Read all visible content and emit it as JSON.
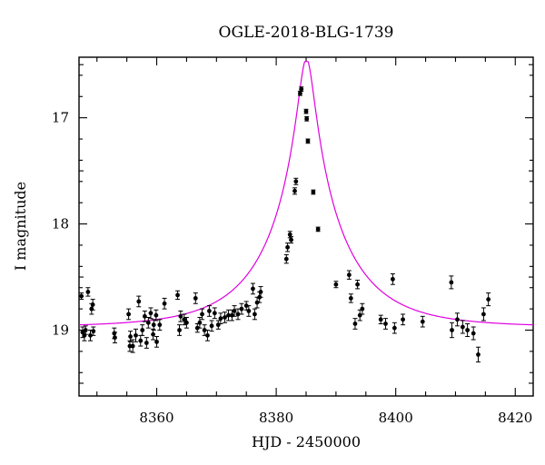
{
  "chart_data": {
    "type": "scatter",
    "title": "OGLE-2018-BLG-1739",
    "xlabel": "HJD - 2450000",
    "ylabel": "I magnitude",
    "xlim": [
      8347,
      8423
    ],
    "ylim": [
      19.62,
      16.43
    ],
    "y_inverted": true,
    "grid": false,
    "x_ticks": [
      8360,
      8380,
      8400,
      8420
    ],
    "y_ticks": [
      17,
      18,
      19
    ],
    "colors": {
      "points": "#000000",
      "model": "#e000e0"
    },
    "series": [
      {
        "kind": "points_with_errorbars",
        "points": [
          [
            8347.4,
            18.68,
            0.03
          ],
          [
            8347.6,
            19.02,
            0.05
          ],
          [
            8347.9,
            19.05,
            0.05
          ],
          [
            8348.1,
            19.0,
            0.04
          ],
          [
            8348.5,
            18.64,
            0.04
          ],
          [
            8348.9,
            19.05,
            0.05
          ],
          [
            8349.1,
            18.8,
            0.05
          ],
          [
            8349.3,
            18.76,
            0.05
          ],
          [
            8349.4,
            19.01,
            0.04
          ],
          [
            8352.9,
            19.03,
            0.05
          ],
          [
            8353.0,
            19.07,
            0.05
          ],
          [
            8355.3,
            18.85,
            0.05
          ],
          [
            8355.5,
            19.15,
            0.05
          ],
          [
            8355.6,
            19.06,
            0.05
          ],
          [
            8356.0,
            19.15,
            0.06
          ],
          [
            8356.5,
            19.05,
            0.06
          ],
          [
            8357.0,
            18.73,
            0.05
          ],
          [
            8357.3,
            19.1,
            0.05
          ],
          [
            8357.6,
            19.0,
            0.05
          ],
          [
            8358.0,
            18.87,
            0.05
          ],
          [
            8358.3,
            19.12,
            0.05
          ],
          [
            8358.6,
            18.93,
            0.05
          ],
          [
            8359.0,
            18.84,
            0.05
          ],
          [
            8359.4,
            19.04,
            0.05
          ],
          [
            8359.5,
            18.95,
            0.05
          ],
          [
            8359.9,
            18.86,
            0.05
          ],
          [
            8360.0,
            19.11,
            0.05
          ],
          [
            8360.5,
            18.95,
            0.05
          ],
          [
            8361.3,
            18.75,
            0.05
          ],
          [
            8363.5,
            18.67,
            0.04
          ],
          [
            8363.8,
            19.0,
            0.05
          ],
          [
            8364.0,
            18.87,
            0.05
          ],
          [
            8364.6,
            18.9,
            0.05
          ],
          [
            8365.0,
            18.93,
            0.05
          ],
          [
            8366.5,
            18.7,
            0.05
          ],
          [
            8366.8,
            18.98,
            0.04
          ],
          [
            8367.2,
            18.93,
            0.05
          ],
          [
            8367.6,
            18.85,
            0.05
          ],
          [
            8368.0,
            19.0,
            0.05
          ],
          [
            8368.5,
            19.05,
            0.05
          ],
          [
            8368.8,
            18.82,
            0.05
          ],
          [
            8369.2,
            18.96,
            0.05
          ],
          [
            8369.7,
            18.84,
            0.05
          ],
          [
            8370.3,
            18.95,
            0.04
          ],
          [
            8370.7,
            18.89,
            0.05
          ],
          [
            8371.4,
            18.88,
            0.05
          ],
          [
            8372.0,
            18.86,
            0.05
          ],
          [
            8372.6,
            18.86,
            0.05
          ],
          [
            8373.0,
            18.82,
            0.05
          ],
          [
            8373.6,
            18.85,
            0.05
          ],
          [
            8374.2,
            18.8,
            0.05
          ],
          [
            8375.0,
            18.77,
            0.04
          ],
          [
            8375.4,
            18.82,
            0.05
          ],
          [
            8376.1,
            18.61,
            0.05
          ],
          [
            8376.4,
            18.85,
            0.05
          ],
          [
            8376.8,
            18.74,
            0.05
          ],
          [
            8377.2,
            18.69,
            0.05
          ],
          [
            8377.4,
            18.64,
            0.05
          ],
          [
            8381.7,
            18.33,
            0.04
          ],
          [
            8381.9,
            18.22,
            0.04
          ],
          [
            8382.3,
            18.1,
            0.03
          ],
          [
            8382.5,
            18.15,
            0.03
          ],
          [
            8383.1,
            17.69,
            0.03
          ],
          [
            8383.3,
            17.6,
            0.03
          ],
          [
            8384.0,
            16.77,
            0.02
          ],
          [
            8384.2,
            16.73,
            0.02
          ],
          [
            8385.0,
            16.94,
            0.02
          ],
          [
            8385.1,
            17.01,
            0.02
          ],
          [
            8385.3,
            17.22,
            0.02
          ],
          [
            8386.2,
            17.7,
            0.02
          ],
          [
            8387.0,
            18.05,
            0.02
          ],
          [
            8390.0,
            18.57,
            0.03
          ],
          [
            8392.2,
            18.48,
            0.04
          ],
          [
            8392.5,
            18.7,
            0.04
          ],
          [
            8393.2,
            18.94,
            0.05
          ],
          [
            8393.6,
            18.57,
            0.04
          ],
          [
            8394.0,
            18.86,
            0.05
          ],
          [
            8394.4,
            18.8,
            0.05
          ],
          [
            8397.5,
            18.9,
            0.04
          ],
          [
            8398.3,
            18.94,
            0.05
          ],
          [
            8399.5,
            18.52,
            0.05
          ],
          [
            8399.8,
            18.98,
            0.05
          ],
          [
            8401.2,
            18.9,
            0.05
          ],
          [
            8404.5,
            18.92,
            0.05
          ],
          [
            8409.3,
            18.55,
            0.06
          ],
          [
            8409.4,
            19.0,
            0.07
          ],
          [
            8410.3,
            18.9,
            0.06
          ],
          [
            8411.2,
            18.97,
            0.06
          ],
          [
            8412.0,
            19.0,
            0.06
          ],
          [
            8413.0,
            19.03,
            0.06
          ],
          [
            8413.8,
            19.23,
            0.07
          ],
          [
            8414.7,
            18.85,
            0.06
          ],
          [
            8415.5,
            18.71,
            0.06
          ]
        ]
      },
      {
        "kind": "model_curve",
        "baseline": 18.97,
        "peak_magnitude": 16.47,
        "t0": 8385.05,
        "tE": 13,
        "u0": 0.098
      }
    ]
  }
}
